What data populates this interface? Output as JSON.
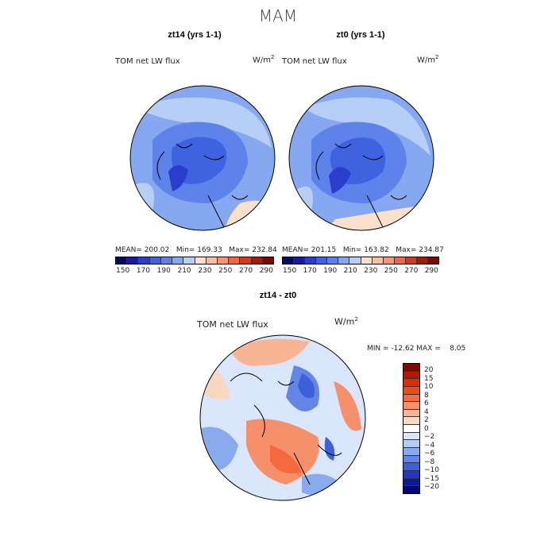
{
  "season": "MAM",
  "panels": {
    "left": {
      "title": "zt14 (yrs 1-1)",
      "variable": "TOM net LW flux",
      "units": "W/m",
      "units_sup": "2",
      "stats": "MEAN= 200.02   Min= 169.33   Max= 232.84"
    },
    "right": {
      "title": "zt0 (yrs 1-1)",
      "variable": "TOM net LW flux",
      "units": "W/m",
      "units_sup": "2",
      "stats": "MEAN= 201.15   Min= 163.82   Max= 234.87"
    },
    "diff": {
      "title": "zt14 - zt0",
      "variable": "TOM net LW flux",
      "units": "W/m",
      "units_sup": "2",
      "stats": "MIN = -12.62 MAX =    8.05"
    }
  },
  "colorbars": {
    "abs": {
      "ticks": [
        "150",
        "170",
        "190",
        "210",
        "230",
        "250",
        "270",
        "290"
      ],
      "colors": [
        "#08085e",
        "#1a1a9a",
        "#2a3dcc",
        "#3f62e0",
        "#5d83ea",
        "#86a8f0",
        "#b7cef6",
        "#fbe1cc",
        "#f8c0a0",
        "#f49672",
        "#ec6848",
        "#d63a1e",
        "#a8190a",
        "#7a0a04"
      ]
    },
    "diff": {
      "ticks": [
        "20",
        "15",
        "10",
        "8",
        "6",
        "4",
        "2",
        "0",
        "−2",
        "−4",
        "−6",
        "−8",
        "−10",
        "−15",
        "−20"
      ],
      "colors": [
        "#7a0a04",
        "#b31806",
        "#dd2a08",
        "#f04a18",
        "#f46a3e",
        "#f6906a",
        "#f8b594",
        "#f9d8c2",
        "#ffffff",
        "#d9e6fb",
        "#b4cbf4",
        "#8aaaee",
        "#6386e6",
        "#3e5fda",
        "#2136c4",
        "#0e1a9c",
        "#040a6a"
      ]
    }
  }
}
